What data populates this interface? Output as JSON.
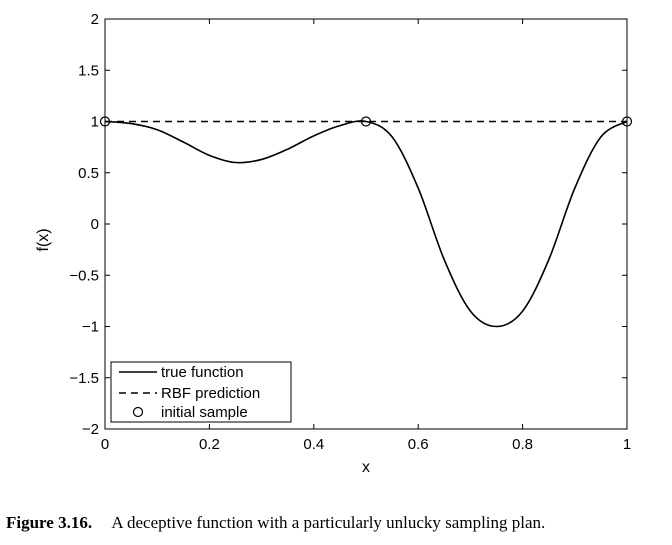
{
  "chart_data": {
    "type": "line",
    "xlabel": "x",
    "ylabel": "f(x)",
    "xlim": [
      0,
      1
    ],
    "ylim": [
      -2,
      2
    ],
    "xticks": [
      0,
      0.2,
      0.4,
      0.6,
      0.8,
      1
    ],
    "xtick_labels": [
      "0",
      "0.2",
      "0.4",
      "0.6",
      "0.8",
      "1"
    ],
    "yticks": [
      -2,
      -1.5,
      -1,
      -0.5,
      0,
      0.5,
      1,
      1.5,
      2
    ],
    "ytick_labels": [
      "−2",
      "−1.5",
      "−1",
      "−0.5",
      "0",
      "0.5",
      "1",
      "1.5",
      "2"
    ],
    "grid": false,
    "legend_position": "bottom-left",
    "series": [
      {
        "name": "true function",
        "style": "solid",
        "x": [
          0,
          0.05,
          0.1,
          0.15,
          0.2,
          0.25,
          0.3,
          0.35,
          0.4,
          0.45,
          0.5,
          0.55,
          0.6,
          0.65,
          0.7,
          0.75,
          0.8,
          0.85,
          0.9,
          0.95,
          1
        ],
        "values": [
          1.0,
          0.98,
          0.92,
          0.8,
          0.67,
          0.6,
          0.63,
          0.73,
          0.86,
          0.96,
          1.0,
          0.85,
          0.35,
          -0.35,
          -0.85,
          -1.0,
          -0.85,
          -0.35,
          0.35,
          0.85,
          1.0
        ]
      },
      {
        "name": "RBF prediction",
        "style": "dashed",
        "x": [
          0,
          1
        ],
        "values": [
          1.0,
          1.0
        ]
      },
      {
        "name": "initial sample",
        "style": "markers",
        "x": [
          0,
          0.5,
          1
        ],
        "values": [
          1.0,
          1.0,
          1.0
        ]
      }
    ]
  },
  "caption": {
    "label": "Figure 3.16.",
    "text": "A deceptive function with a particularly unlucky sampling plan."
  },
  "colors": {
    "line": "#000000",
    "background": "#ffffff"
  }
}
